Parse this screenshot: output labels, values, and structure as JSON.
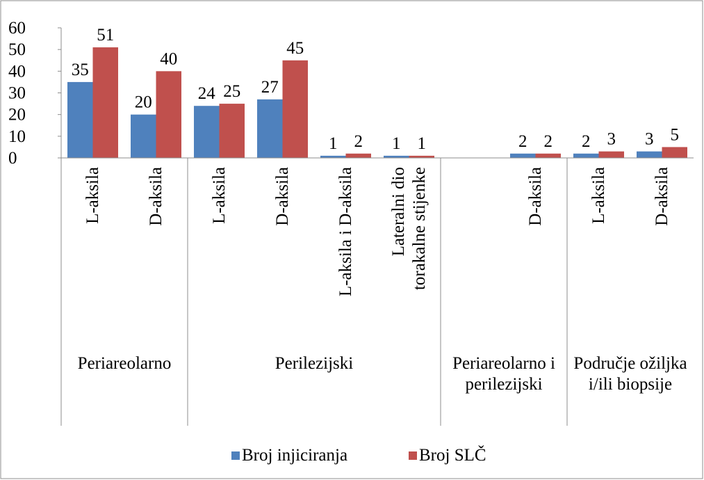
{
  "chart_data": {
    "type": "bar",
    "groups": [
      {
        "label": "Periareolarno",
        "categories": [
          "L-aksila",
          "D-aksila"
        ]
      },
      {
        "label": "Perilezijski",
        "categories": [
          "L-aksila",
          "D-aksila",
          "L-aksila i D-aksila",
          "Lateralni dio torakalne stijenke"
        ]
      },
      {
        "label": "Periareolarno i perilezijski",
        "categories": [
          null,
          "D-aksila"
        ]
      },
      {
        "label": "Područje ožiljka i/ili biopsije",
        "categories": [
          "L-aksila",
          "D-aksila"
        ]
      }
    ],
    "series": [
      {
        "name": "Broj injiciranja",
        "color": "#4f81bd",
        "values": [
          35,
          20,
          24,
          27,
          1,
          1,
          null,
          2,
          2,
          3
        ]
      },
      {
        "name": "Broj SLČ",
        "color": "#c0504d",
        "values": [
          51,
          40,
          25,
          45,
          2,
          1,
          null,
          2,
          3,
          5
        ]
      }
    ],
    "ylim": [
      0,
      60
    ],
    "yticks": [
      0,
      10,
      20,
      30,
      40,
      50,
      60
    ],
    "legend": "bottom"
  }
}
